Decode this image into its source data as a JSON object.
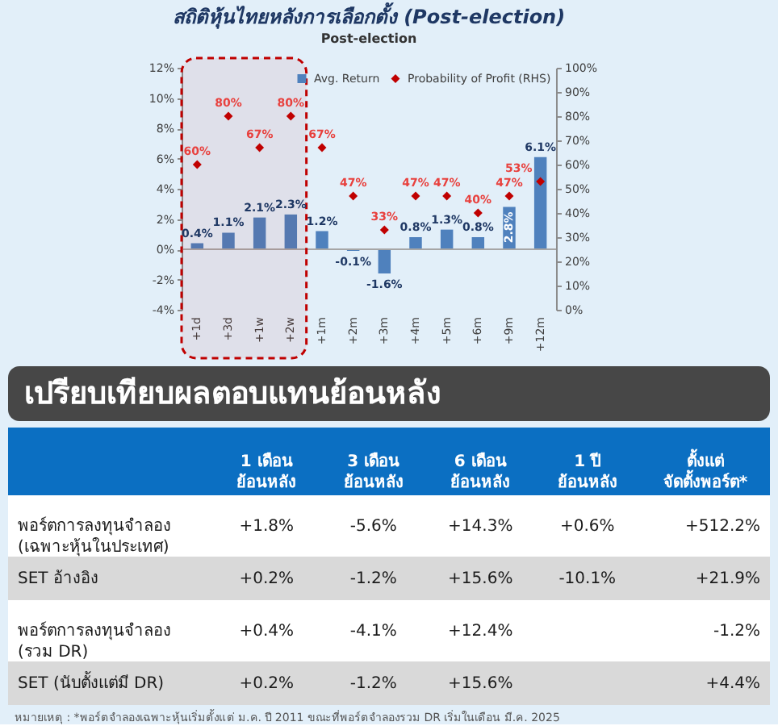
{
  "chart_data": [
    {
      "type": "bar",
      "title": "สถิติหุ้นไทยหลังการเลือกตั้ง (Post-election)",
      "subtitle": "Post-election",
      "categories": [
        "+1d",
        "+3d",
        "+1w",
        "+2w",
        "+1m",
        "+2m",
        "+3m",
        "+4m",
        "+5m",
        "+6m",
        "+9m",
        "+12m"
      ],
      "series": [
        {
          "name": "Avg. Return",
          "type": "bar",
          "color": "#4f81bd",
          "values": [
            0.4,
            1.1,
            2.1,
            2.3,
            1.2,
            -0.1,
            -1.6,
            0.8,
            1.3,
            0.8,
            2.8,
            6.1
          ],
          "value_labels": [
            "0.4%",
            "1.1%",
            "2.1%",
            "2.3%",
            "1.2%",
            "-0.1%",
            "-1.6%",
            "0.8%",
            "1.3%",
            "0.8%",
            "2.8%",
            "6.1%"
          ]
        },
        {
          "name": "Probability of Profit (RHS)",
          "type": "scatter",
          "axis": "y2",
          "marker": "diamond",
          "color": "#c00000",
          "values": [
            60,
            80,
            67,
            80,
            67,
            47,
            33,
            47,
            47,
            40,
            47,
            53
          ],
          "value_labels": [
            "60%",
            "80%",
            "67%",
            "80%",
            "67%",
            "47%",
            "33%",
            "47%",
            "47%",
            "40%",
            "47%",
            "53%"
          ]
        }
      ],
      "ylim": [
        -4,
        12
      ],
      "yticks": [
        {
          "value": -4,
          "label": "-4%"
        },
        {
          "value": -2,
          "label": "-2%"
        },
        {
          "value": 0,
          "label": "0%"
        },
        {
          "value": 2,
          "label": "2%"
        },
        {
          "value": 4,
          "label": "4%"
        },
        {
          "value": 6,
          "label": "6%"
        },
        {
          "value": 8,
          "label": "8%"
        },
        {
          "value": 10,
          "label": "10%"
        },
        {
          "value": 12,
          "label": "12%"
        }
      ],
      "y2lim": [
        0,
        100
      ],
      "y2ticks": [
        {
          "value": 0,
          "label": "0%"
        },
        {
          "value": 10,
          "label": "10%"
        },
        {
          "value": 20,
          "label": "20%"
        },
        {
          "value": 30,
          "label": "30%"
        },
        {
          "value": 40,
          "label": "40%"
        },
        {
          "value": 50,
          "label": "50%"
        },
        {
          "value": 60,
          "label": "60%"
        },
        {
          "value": 70,
          "label": "70%"
        },
        {
          "value": 80,
          "label": "80%"
        },
        {
          "value": 90,
          "label": "90%"
        },
        {
          "value": 100,
          "label": "100%"
        }
      ],
      "ref_lines": [
        {
          "axis": "y",
          "value": 0,
          "color": "#a6a6a6"
        }
      ],
      "bands": [
        {
          "axis": "x",
          "from": "+1d",
          "to": "+2w",
          "color": "#c00000"
        }
      ],
      "legend": "top right"
    },
    {
      "type": "other",
      "title": "เปรียบเทียบผลตอบแทนย้อนหลัง",
      "categories": [
        "1 เดือน\nย้อนหลัง",
        "3 เดือน\nย้อนหลัง",
        "6 เดือน\nย้อนหลัง",
        "1 ปี\nย้อนหลัง",
        "ตั้งแต่\nจัดตั้งพอร์ต*"
      ],
      "y_categories": [
        "พอร์ตการลงทุนจำลอง\n(เฉพาะหุ้นในประเทศ)",
        "SET อ้างอิง",
        "พอร์ตการลงทุนจำลอง\n(รวม DR)",
        "SET (นับตั้งแต่มี DR)"
      ],
      "cell_labels": [
        [
          "+1.8%",
          "-5.6%",
          "+14.3%",
          "+0.6%",
          "+512.2%"
        ],
        [
          "+0.2%",
          "-1.2%",
          "+15.6%",
          "-10.1%",
          "+21.9%"
        ],
        [
          "+0.4%",
          "-4.1%",
          "+12.4%",
          null,
          "-1.2%"
        ],
        [
          "+0.2%",
          "-1.2%",
          "+15.6%",
          null,
          "+4.4%"
        ]
      ],
      "annotations": [
        "หมายเหตุ : *พอร์ตจำลองเฉพาะหุ้นเริ่มตั้งแต่ ม.ค. ปี 2011 ขณะที่พอร์ตจำลองรวม DR เริ่มในเดือน มี.ค. 2025"
      ]
    }
  ]
}
